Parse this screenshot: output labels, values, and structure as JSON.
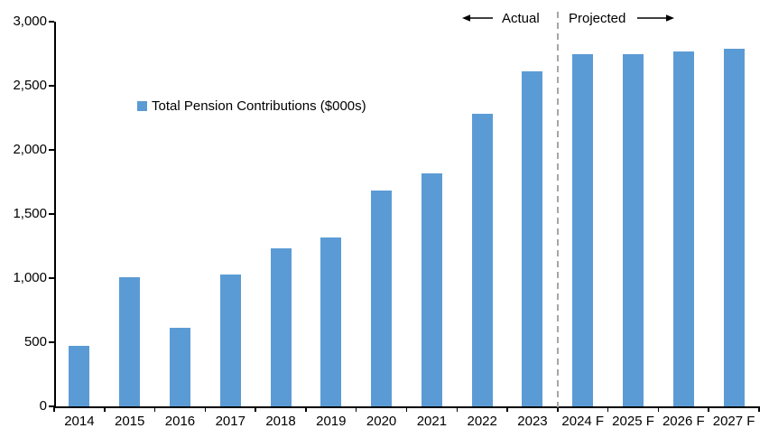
{
  "chart_data": {
    "type": "bar",
    "title": "",
    "legend_label": "Total Pension Contributions ($000s)",
    "categories": [
      "2014",
      "2015",
      "2016",
      "2017",
      "2018",
      "2019",
      "2020",
      "2021",
      "2022",
      "2023",
      "2024 F",
      "2025 F",
      "2026 F",
      "2027 F"
    ],
    "values": [
      470,
      1005,
      610,
      1030,
      1235,
      1320,
      1685,
      1815,
      2280,
      2610,
      2750,
      2745,
      2765,
      2790
    ],
    "ylim": [
      0,
      3000
    ],
    "ytick_interval": 500,
    "ytick_labels": [
      "0",
      "500",
      "1,000",
      "1,500",
      "2,000",
      "2,500",
      "3,000"
    ],
    "xlabel": "",
    "ylabel": "",
    "grid": false,
    "legend_position": "inside-upper-left",
    "annotations": {
      "actual_label": "Actual",
      "projected_label": "Projected",
      "divider_after_category": "2023"
    },
    "colors": {
      "bar": "#5B9BD5",
      "divider": "#A6A6A6",
      "axis": "#000000",
      "text": "#000000",
      "background": "#FFFFFF"
    }
  }
}
